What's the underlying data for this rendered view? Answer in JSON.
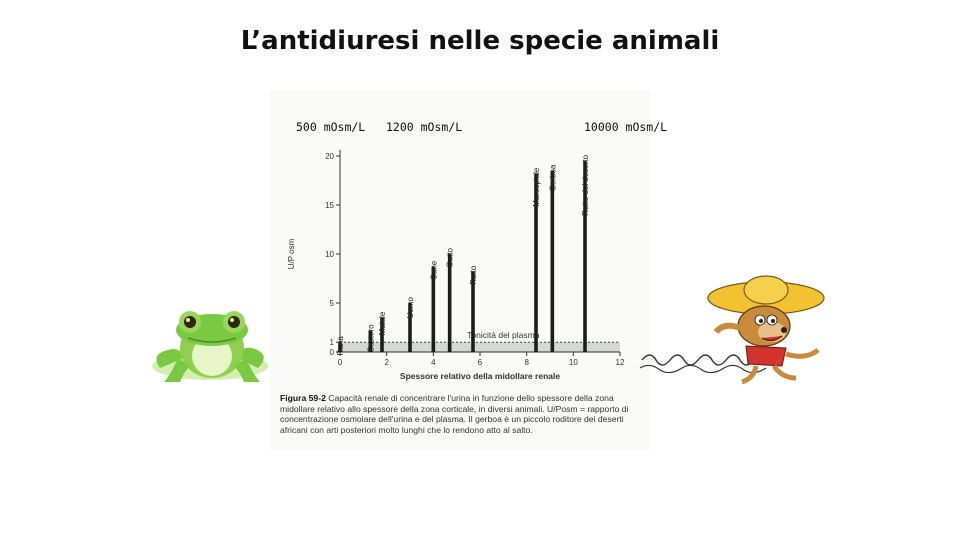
{
  "slide": {
    "title": "L’antidiuresi nelle specie animali",
    "osm_labels": [
      "500 mOsm/L",
      "1200 mOsm/L",
      "10000 mOsm/L"
    ]
  },
  "chart_data": {
    "type": "bar",
    "ylabel": "U/P osm",
    "xlabel": "Spessore relativo della midollare renale",
    "xlim": [
      0,
      12
    ],
    "ylim": [
      0,
      20
    ],
    "xticks": [
      "0",
      "2",
      "4",
      "6",
      "8",
      "10",
      "12"
    ],
    "yticks": [
      "0",
      "1",
      "5",
      "10",
      "15",
      "20"
    ],
    "reference": {
      "label": "Tonicità del plasma",
      "value": 1
    },
    "bars": [
      {
        "label": "Rana",
        "x": 0.0,
        "y": 1.0
      },
      {
        "label": "Castoro",
        "x": 1.3,
        "y": 2.2
      },
      {
        "label": "Maiale",
        "x": 1.8,
        "y": 3.5
      },
      {
        "label": "Uomo",
        "x": 3.0,
        "y": 5.0
      },
      {
        "label": "Cane",
        "x": 4.0,
        "y": 8.7
      },
      {
        "label": "Gatto",
        "x": 4.7,
        "y": 10.0
      },
      {
        "label": "Ratto",
        "x": 5.7,
        "y": 8.2
      },
      {
        "label": "Marsupiale",
        "x": 8.4,
        "y": 18.2
      },
      {
        "label": "Gerboa",
        "x": 9.1,
        "y": 18.5
      },
      {
        "label": "Ratto del deserto",
        "x": 10.5,
        "y": 19.5
      }
    ],
    "caption": {
      "label": "Figura 59-2",
      "text": "Capacità renale di concentrare l'urina in funzione dello spessore della zona midollare relativo allo spessore della zona corticale, in diversi animali. U/Posm = rapporto di concentrazione osmolare dell'urina e del plasma. Il gerboa è un piccolo roditore dei deserti africani con arti posteriori molto lunghi che lo rendono atto al salto."
    }
  },
  "illustrations": {
    "frog_colors": [
      "#7ac943",
      "#b7e27a",
      "#e8f5c8"
    ],
    "mouse_colors": [
      "#c98a3a",
      "#f2c230",
      "#d0342c"
    ]
  }
}
